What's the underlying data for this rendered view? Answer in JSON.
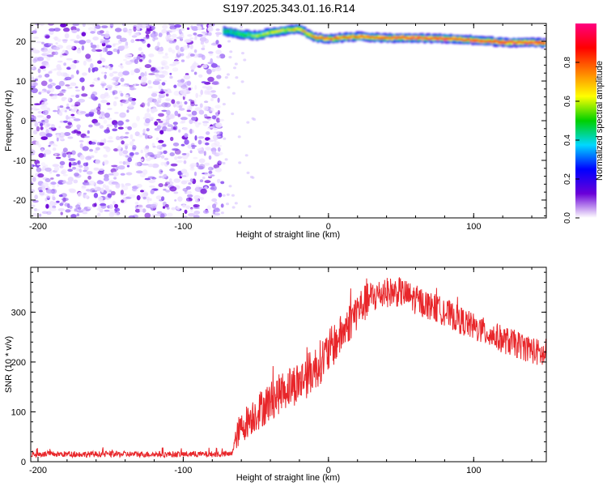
{
  "title": "S197.2025.343.01.16.R14",
  "colors": {
    "axis": "#000000",
    "snr_line": "#e8262a",
    "background": "#ffffff"
  },
  "chart_data": [
    {
      "type": "heatmap",
      "title": "",
      "xlabel": "Height of straight line (km)",
      "ylabel": "Frequency (Hz)",
      "xlim": [
        -205,
        150
      ],
      "ylim": [
        -24.5,
        24.5
      ],
      "x_ticks": [
        -200,
        -100,
        0,
        100
      ],
      "y_ticks": [
        -20,
        -10,
        0,
        10,
        20
      ],
      "colorbar": {
        "label": "Normalized spectral amplitude",
        "range": [
          0,
          1
        ],
        "ticks": [
          0.0,
          0.2,
          0.4,
          0.6,
          0.8
        ],
        "colormap": [
          "#ffffff",
          "#6a00d8",
          "#0000ff",
          "#00d8ff",
          "#00d000",
          "#ffff00",
          "#ff8000",
          "#ff0000",
          "#ff0080"
        ]
      },
      "noise_region": {
        "x_from": -205,
        "x_to": -73,
        "amplitude": 0.1
      },
      "signal_track": [
        {
          "x": -72,
          "freq": 22.5,
          "amp": 0.45
        },
        {
          "x": -60,
          "freq": 21.8,
          "amp": 0.5
        },
        {
          "x": -50,
          "freq": 21.5,
          "amp": 0.55
        },
        {
          "x": -40,
          "freq": 22.2,
          "amp": 0.6
        },
        {
          "x": -30,
          "freq": 22.8,
          "amp": 0.65
        },
        {
          "x": -20,
          "freq": 23.2,
          "amp": 0.7
        },
        {
          "x": -15,
          "freq": 22.0,
          "amp": 0.7
        },
        {
          "x": -10,
          "freq": 21.0,
          "amp": 0.75
        },
        {
          "x": 0,
          "freq": 20.6,
          "amp": 0.85
        },
        {
          "x": 10,
          "freq": 21.0,
          "amp": 0.8
        },
        {
          "x": 20,
          "freq": 21.2,
          "amp": 0.82
        },
        {
          "x": 30,
          "freq": 21.0,
          "amp": 0.8
        },
        {
          "x": 40,
          "freq": 20.8,
          "amp": 0.85
        },
        {
          "x": 50,
          "freq": 20.9,
          "amp": 0.9
        },
        {
          "x": 60,
          "freq": 20.8,
          "amp": 0.92
        },
        {
          "x": 80,
          "freq": 20.7,
          "amp": 0.9
        },
        {
          "x": 100,
          "freq": 20.3,
          "amp": 0.88
        },
        {
          "x": 120,
          "freq": 19.8,
          "amp": 0.9
        },
        {
          "x": 150,
          "freq": 19.6,
          "amp": 0.9
        }
      ]
    },
    {
      "type": "line",
      "title": "",
      "xlabel": "Height of straight line (km)",
      "ylabel": "SNR (10 * v/v)",
      "xlim": [
        -205,
        150
      ],
      "ylim": [
        0,
        390
      ],
      "x_ticks": [
        -200,
        -100,
        0,
        100
      ],
      "y_ticks": [
        0,
        100,
        200,
        300
      ],
      "grid": false,
      "series": [
        {
          "color": "#e8262a",
          "trend_x": [
            -205,
            -150,
            -100,
            -67,
            -62,
            -55,
            -45,
            -30,
            -20,
            -10,
            0,
            10,
            20,
            30,
            40,
            50,
            60,
            80,
            100,
            120,
            140,
            150
          ],
          "trend_y": [
            15,
            15,
            15,
            15,
            60,
            85,
            110,
            145,
            160,
            185,
            220,
            260,
            305,
            330,
            340,
            340,
            325,
            300,
            270,
            245,
            225,
            210
          ],
          "noise_amplitude": [
            6,
            6,
            6,
            6,
            30,
            35,
            40,
            40,
            45,
            45,
            45,
            40,
            40,
            35,
            30,
            30,
            30,
            28,
            28,
            28,
            28,
            28
          ]
        }
      ]
    }
  ]
}
